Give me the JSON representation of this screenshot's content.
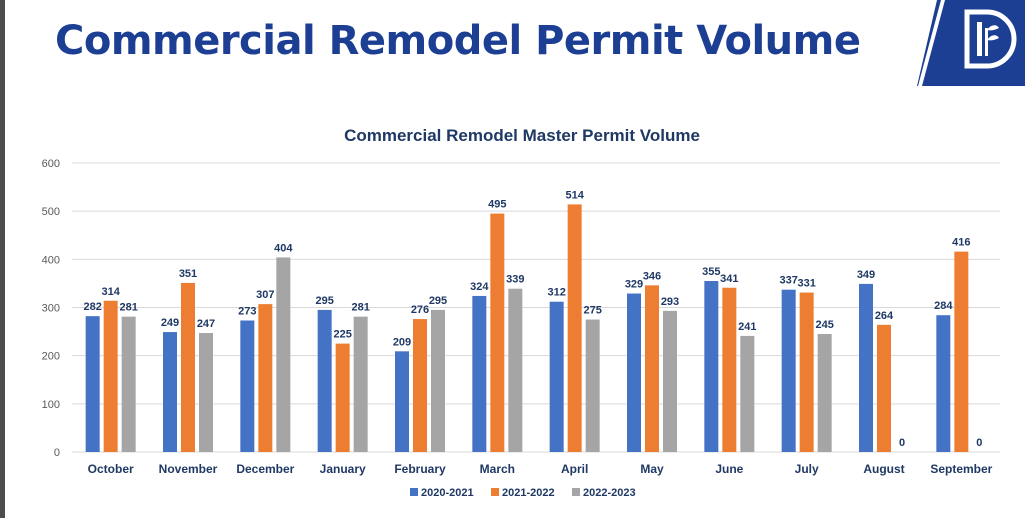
{
  "header": {
    "title": "Commercial Remodel Permit Volume",
    "logo_icon": "dallas-d-logo-icon"
  },
  "colors": {
    "title": "#1c3f94",
    "series": [
      "#4472c4",
      "#ed7d31",
      "#a5a5a5"
    ],
    "grid": "#d9d9d9",
    "label": "#1f3864"
  },
  "chart_data": {
    "type": "bar",
    "title": "Commercial Remodel Master Permit Volume",
    "xlabel": "",
    "ylabel": "",
    "ylim": [
      0,
      600
    ],
    "yticks": [
      0,
      100,
      200,
      300,
      400,
      500,
      600
    ],
    "grid": true,
    "legend_position": "bottom-center",
    "categories": [
      "October",
      "November",
      "December",
      "January",
      "February",
      "March",
      "April",
      "May",
      "June",
      "July",
      "August",
      "September"
    ],
    "series": [
      {
        "name": "2020-2021",
        "values": [
          282,
          249,
          273,
          295,
          209,
          324,
          312,
          329,
          355,
          337,
          349,
          284
        ]
      },
      {
        "name": "2021-2022",
        "values": [
          314,
          351,
          307,
          225,
          276,
          495,
          514,
          346,
          341,
          331,
          264,
          416
        ]
      },
      {
        "name": "2022-2023",
        "values": [
          281,
          247,
          404,
          281,
          295,
          339,
          275,
          293,
          241,
          245,
          0,
          0
        ]
      }
    ]
  }
}
